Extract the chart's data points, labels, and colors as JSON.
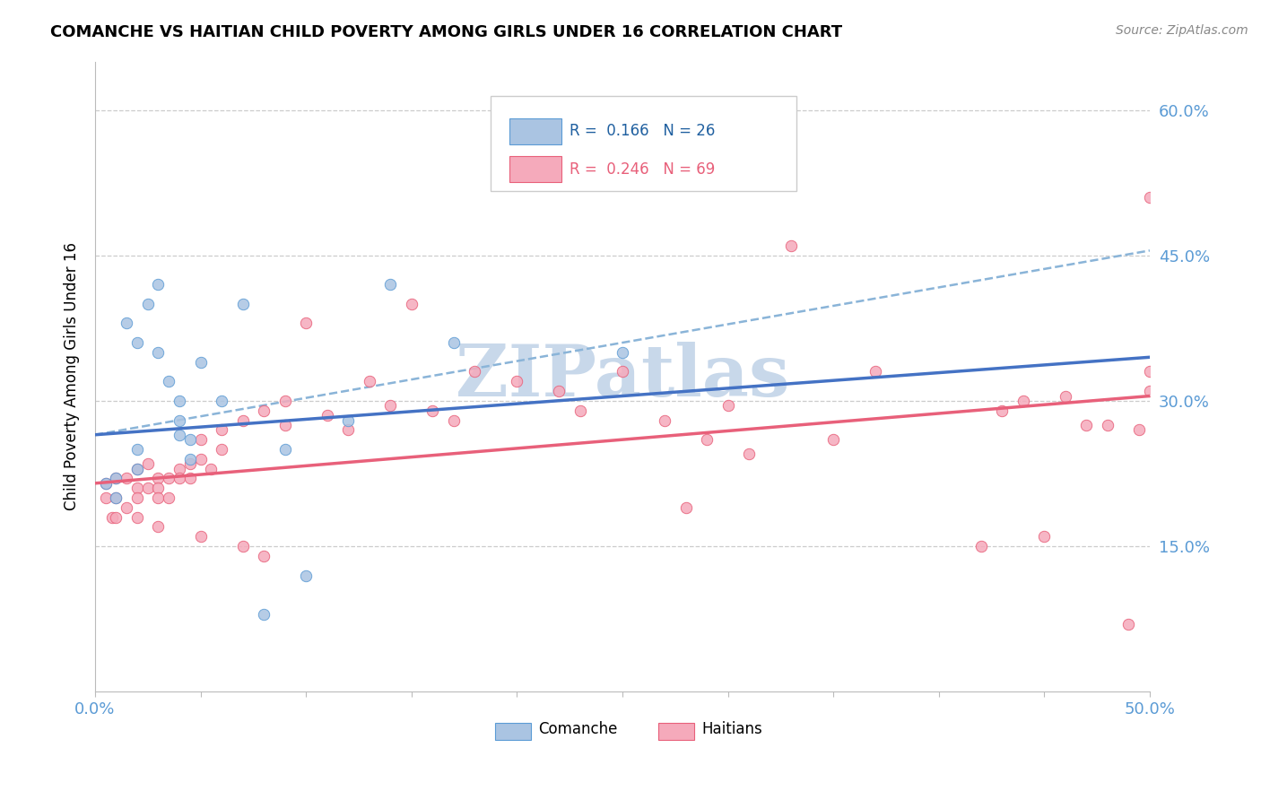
{
  "title": "COMANCHE VS HAITIAN CHILD POVERTY AMONG GIRLS UNDER 16 CORRELATION CHART",
  "source_text": "Source: ZipAtlas.com",
  "ylabel_labels": [
    "15.0%",
    "30.0%",
    "45.0%",
    "60.0%"
  ],
  "ylabel_values": [
    0.15,
    0.3,
    0.45,
    0.6
  ],
  "xlim": [
    0.0,
    0.5
  ],
  "ylim": [
    0.0,
    0.65
  ],
  "comanche_r": "0.166",
  "comanche_n": "26",
  "haitian_r": "0.246",
  "haitian_n": "69",
  "comanche_color": "#aac4e2",
  "haitian_color": "#f5aabb",
  "comanche_edge_color": "#5b9bd5",
  "haitian_edge_color": "#e8607a",
  "comanche_line_color": "#4472c4",
  "haitian_line_color": "#e8607a",
  "comanche_dashed_color": "#8ab4d8",
  "watermark_text": "ZIPatlas",
  "watermark_color": "#c8d8ea",
  "legend_label_comanche": "Comanche",
  "legend_label_haitian": "Haitians",
  "comanche_x": [
    0.005,
    0.01,
    0.01,
    0.015,
    0.02,
    0.02,
    0.02,
    0.025,
    0.03,
    0.03,
    0.035,
    0.04,
    0.04,
    0.04,
    0.045,
    0.045,
    0.05,
    0.06,
    0.07,
    0.08,
    0.09,
    0.1,
    0.12,
    0.14,
    0.17,
    0.25
  ],
  "comanche_y": [
    0.215,
    0.22,
    0.2,
    0.38,
    0.36,
    0.25,
    0.23,
    0.4,
    0.42,
    0.35,
    0.32,
    0.3,
    0.28,
    0.265,
    0.26,
    0.24,
    0.34,
    0.3,
    0.4,
    0.08,
    0.25,
    0.12,
    0.28,
    0.42,
    0.36,
    0.35
  ],
  "haitian_x": [
    0.005,
    0.005,
    0.008,
    0.01,
    0.01,
    0.01,
    0.015,
    0.015,
    0.02,
    0.02,
    0.02,
    0.02,
    0.025,
    0.025,
    0.03,
    0.03,
    0.03,
    0.03,
    0.035,
    0.035,
    0.04,
    0.04,
    0.045,
    0.045,
    0.05,
    0.05,
    0.05,
    0.055,
    0.06,
    0.06,
    0.07,
    0.07,
    0.08,
    0.08,
    0.09,
    0.09,
    0.1,
    0.11,
    0.12,
    0.13,
    0.14,
    0.15,
    0.16,
    0.17,
    0.18,
    0.2,
    0.22,
    0.23,
    0.25,
    0.27,
    0.28,
    0.29,
    0.3,
    0.31,
    0.33,
    0.35,
    0.37,
    0.42,
    0.43,
    0.44,
    0.45,
    0.46,
    0.47,
    0.48,
    0.49,
    0.495,
    0.5,
    0.5,
    0.5
  ],
  "haitian_y": [
    0.215,
    0.2,
    0.18,
    0.22,
    0.2,
    0.18,
    0.22,
    0.19,
    0.23,
    0.21,
    0.2,
    0.18,
    0.235,
    0.21,
    0.22,
    0.21,
    0.2,
    0.17,
    0.22,
    0.2,
    0.23,
    0.22,
    0.235,
    0.22,
    0.26,
    0.24,
    0.16,
    0.23,
    0.27,
    0.25,
    0.28,
    0.15,
    0.29,
    0.14,
    0.3,
    0.275,
    0.38,
    0.285,
    0.27,
    0.32,
    0.295,
    0.4,
    0.29,
    0.28,
    0.33,
    0.32,
    0.31,
    0.29,
    0.33,
    0.28,
    0.19,
    0.26,
    0.295,
    0.245,
    0.46,
    0.26,
    0.33,
    0.15,
    0.29,
    0.3,
    0.16,
    0.305,
    0.275,
    0.275,
    0.07,
    0.27,
    0.33,
    0.31,
    0.51
  ],
  "comanche_trendline_x0": 0.0,
  "comanche_trendline_y0": 0.265,
  "comanche_trendline_x1": 0.5,
  "comanche_trendline_y1": 0.345,
  "haitian_trendline_x0": 0.0,
  "haitian_trendline_y0": 0.215,
  "haitian_trendline_x1": 0.5,
  "haitian_trendline_y1": 0.305
}
